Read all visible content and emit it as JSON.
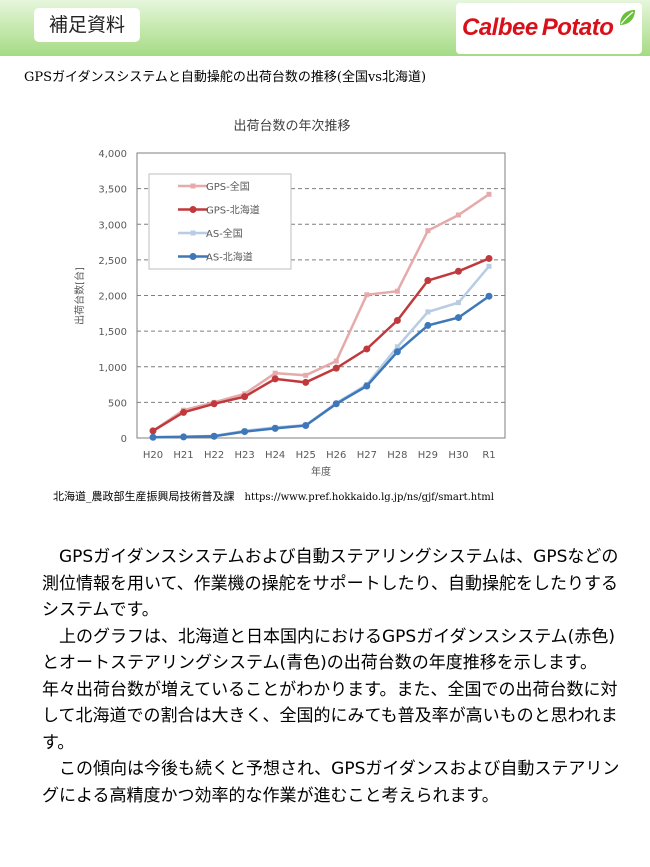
{
  "header": {
    "section_label": "補足資料",
    "logo": {
      "word1": "Calbee",
      "word2": "Potato",
      "leaf_icon": "leaf-icon",
      "color": "#d90f1a"
    }
  },
  "page_title": "GPSガイダンスシステムと自動操舵の出荷台数の推移(全国vs北海道)",
  "chart_data": {
    "type": "line",
    "title": "出荷台数の年次推移",
    "xlabel": "年度",
    "ylabel": "出荷台数[台]",
    "ylim": [
      0,
      4000
    ],
    "yticks": [
      0,
      500,
      1000,
      1500,
      2000,
      2500,
      3000,
      3500,
      4000
    ],
    "ytick_labels": [
      "0",
      "500",
      "1,000",
      "1,500",
      "2,000",
      "2,500",
      "3,000",
      "3,500",
      "4,000"
    ],
    "grid": true,
    "legend_position": "top-left",
    "categories": [
      "H20",
      "H21",
      "H22",
      "H23",
      "H24",
      "H25",
      "H26",
      "H27",
      "H28",
      "H29",
      "H30",
      "R1"
    ],
    "series": [
      {
        "name": "GPS-全国",
        "color": "#e6aaaa",
        "marker": "square",
        "values": [
          100,
          390,
          500,
          620,
          910,
          880,
          1080,
          2010,
          2060,
          2910,
          3130,
          3420
        ]
      },
      {
        "name": "GPS-北海道",
        "color": "#c0393d",
        "marker": "circle",
        "values": [
          100,
          360,
          480,
          580,
          830,
          780,
          980,
          1250,
          1650,
          2210,
          2340,
          2520
        ]
      },
      {
        "name": "AS-全国",
        "color": "#b8cce4",
        "marker": "square",
        "values": [
          10,
          20,
          30,
          100,
          150,
          180,
          490,
          750,
          1280,
          1770,
          1900,
          2410
        ]
      },
      {
        "name": "AS-北海道",
        "color": "#3e78b9",
        "marker": "circle",
        "values": [
          10,
          15,
          25,
          90,
          135,
          175,
          480,
          730,
          1210,
          1580,
          1690,
          1990
        ]
      }
    ]
  },
  "source": {
    "org": "北海道_農政部生産振興局技術普及課",
    "url": "https://www.pref.hokkaido.lg.jp/ns/gjf/smart.html"
  },
  "body": {
    "paragraphs": [
      "　GPSガイダンスシステムおよび自動ステアリングシステムは、GPSなどの測位情報を用いて、作業機の操舵をサポートしたり、自動操舵をしたりするシステムです。",
      "　上のグラフは、北海道と日本国内におけるGPSガイダンスシステム(赤色)とオートステアリングシステム(青色)の出荷台数の年度推移を示します。年々出荷台数が増えていることがわかります。また、全国での出荷台数に対して北海道での割合は大きく、全国的にみても普及率が高いものと思われます。",
      "　この傾向は今後も続くと予想され、GPSガイダンスおよび自動ステアリングによる高精度かつ効率的な作業が進むこと考えられます。"
    ]
  }
}
